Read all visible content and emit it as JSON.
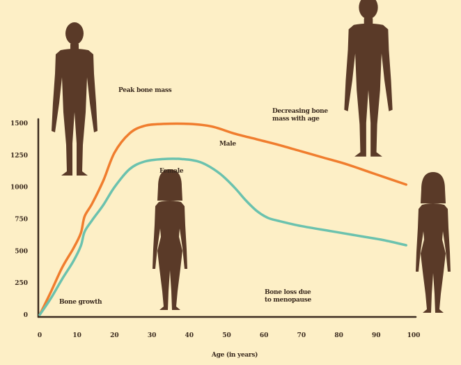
{
  "chart_data": {
    "type": "line",
    "title": "",
    "xlabel": "Age (in years)",
    "ylabel": "",
    "xlim": [
      0,
      100
    ],
    "ylim": [
      0,
      1500
    ],
    "x_ticks": [
      0,
      10,
      20,
      30,
      40,
      50,
      60,
      70,
      80,
      90,
      100
    ],
    "y_ticks": [
      0,
      250,
      500,
      750,
      1000,
      1250,
      1500
    ],
    "series": [
      {
        "name": "Male",
        "color": "#F07D2E",
        "x": [
          0,
          3,
          6,
          9,
          11,
          12,
          14,
          17,
          20,
          24,
          28,
          33,
          40,
          46,
          52,
          58,
          64,
          70,
          76,
          82,
          88,
          94,
          98
        ],
        "y": [
          0,
          180,
          370,
          520,
          640,
          770,
          870,
          1050,
          1270,
          1420,
          1480,
          1495,
          1495,
          1475,
          1420,
          1375,
          1330,
          1280,
          1230,
          1180,
          1120,
          1060,
          1020
        ]
      },
      {
        "name": "Female",
        "color": "#6BC2AE",
        "x": [
          0,
          3,
          6,
          9,
          11,
          12,
          14,
          17,
          20,
          24,
          28,
          33,
          38,
          43,
          48,
          52,
          55,
          58,
          61,
          64,
          70,
          78,
          86,
          92,
          98
        ],
        "y": [
          0,
          130,
          280,
          420,
          540,
          650,
          740,
          860,
          1000,
          1140,
          1200,
          1220,
          1220,
          1195,
          1110,
          1000,
          900,
          815,
          760,
          735,
          695,
          655,
          615,
          585,
          545
        ]
      }
    ],
    "annotations": [
      "Peak bone mass",
      "Decreasing bone mass with age",
      "Male",
      "Female",
      "Bone growth",
      "Bone loss due to menopause"
    ]
  },
  "annotation_labels": {
    "peak": "Peak bone mass",
    "decreasing_1": "Decreasing bone",
    "decreasing_2": "mass with age",
    "male": "Male",
    "female": "Female",
    "bone_growth": "Bone growth",
    "menopause_1": "Bone loss due",
    "menopause_2": "to menopause"
  },
  "icons": [
    "male-silhouette-icon",
    "female-silhouette-icon"
  ],
  "colors": {
    "background": "#FDEFC6",
    "axis": "#3a2a1e",
    "silhouette": "#5A3A28",
    "male_line": "#F07D2E",
    "female_line": "#6BC2AE"
  }
}
